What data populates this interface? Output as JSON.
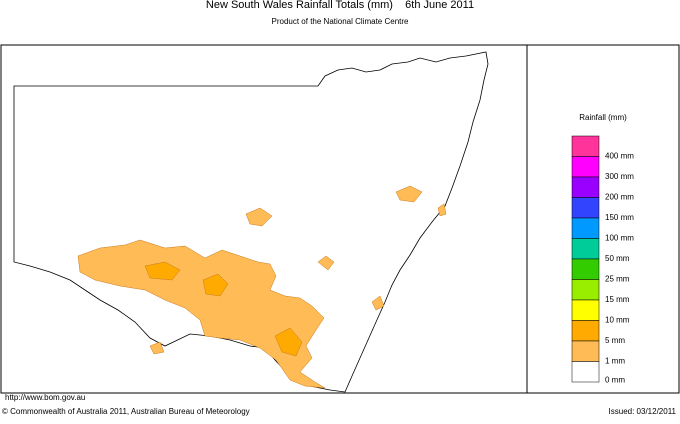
{
  "header": {
    "title": "New South Wales Rainfall Totals (mm)    6th June 2011",
    "subtitle": "Product of the National Climate Centre"
  },
  "legend": {
    "title": "Rainfall (mm)",
    "items": [
      {
        "label": "400 mm",
        "color": "#ff3399"
      },
      {
        "label": "300 mm",
        "color": "#ff00ff"
      },
      {
        "label": "200 mm",
        "color": "#9900ff"
      },
      {
        "label": "150 mm",
        "color": "#3344ff"
      },
      {
        "label": "100 mm",
        "color": "#0099ff"
      },
      {
        "label": "50 mm",
        "color": "#00cc99"
      },
      {
        "label": "25 mm",
        "color": "#33cc00"
      },
      {
        "label": "15 mm",
        "color": "#99ee00"
      },
      {
        "label": "10 mm",
        "color": "#ffff00"
      },
      {
        "label": "5 mm",
        "color": "#ffaa00"
      },
      {
        "label": "1 mm",
        "color": "#ffbb55"
      },
      {
        "label": "0 mm",
        "color": "#ffffff"
      }
    ]
  },
  "footer": {
    "url": "http://www.bom.gov.au",
    "copyright": "© Commonwealth of Australia 2011, Australian Bureau of Meteorology",
    "issued": "Issued: 03/12/2011"
  }
}
